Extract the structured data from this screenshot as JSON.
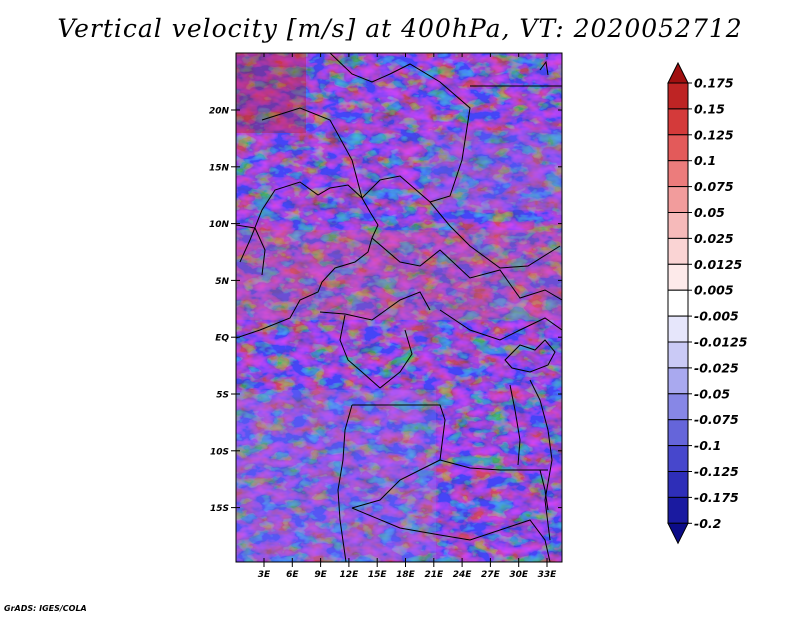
{
  "title": "Vertical velocity [m/s] at 400hPa, VT: 2020052712",
  "credit": "GrADS: IGES/COLA",
  "map": {
    "lat_ticks": [
      "20N",
      "15N",
      "10N",
      "5N",
      "EQ",
      "5S",
      "10S",
      "15S"
    ],
    "lon_ticks": [
      "3E",
      "6E",
      "9E",
      "12E",
      "15E",
      "18E",
      "21E",
      "24E",
      "27E",
      "30E",
      "33E"
    ]
  },
  "colorbar": {
    "labels": [
      "0.175",
      "0.15",
      "0.125",
      "0.1",
      "0.075",
      "0.05",
      "0.025",
      "0.0125",
      "0.005",
      "-0.005",
      "-0.0125",
      "-0.025",
      "-0.05",
      "-0.075",
      "-0.1",
      "-0.125",
      "-0.175",
      "-0.2"
    ],
    "colors": [
      "#a01010",
      "#be2424",
      "#d43a3a",
      "#e35a5a",
      "#ec7c7c",
      "#f29c9c",
      "#f6baba",
      "#fad4d4",
      "#fdeaea",
      "#ffffff",
      "#e6e6fb",
      "#cacaf6",
      "#a9a9ef",
      "#8787e6",
      "#6565da",
      "#4747cc",
      "#2e2eb8",
      "#1a1aa0",
      "#0c0c88"
    ]
  }
}
